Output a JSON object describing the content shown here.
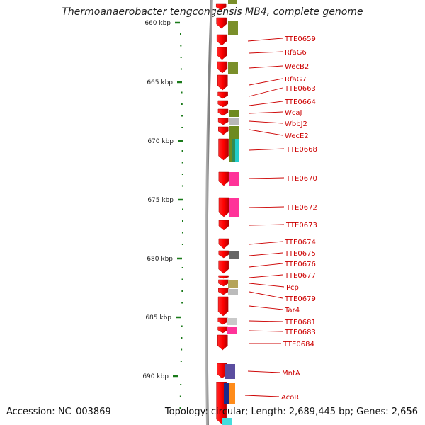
{
  "title": "Thermoanaerobacter tengcongensis MB4, complete genome",
  "footer": {
    "accession": "Accession: NC_003869",
    "summary": "Topology: circular; Length: 2,689,445 bp; Genes: 2,656"
  },
  "axis": {
    "ticks": [
      "660 kbp",
      "665 kbp",
      "670 kbp",
      "675 kbp",
      "680 kbp",
      "685 kbp",
      "690 kbp"
    ]
  },
  "colors": {
    "gene": "#ee1111",
    "label": "#cc0000",
    "axis_tick": "#1a7a1a",
    "backbone": "#808080"
  },
  "gene_labels": [
    "TTE0659",
    "RfaG6",
    "WecB2",
    "RfaG7",
    "TTE0663",
    "TTE0664",
    "WcaJ",
    "WbbJ2",
    "WecE2",
    "TTE0668",
    "TTE0670",
    "TTE0672",
    "TTE0673",
    "TTE0674",
    "TTE0675",
    "TTE0676",
    "TTE0677",
    "Pcp",
    "TTE0679",
    "Tar4",
    "TTE0681",
    "TTE0683",
    "TTE0684",
    "MntA",
    "AcoR"
  ]
}
